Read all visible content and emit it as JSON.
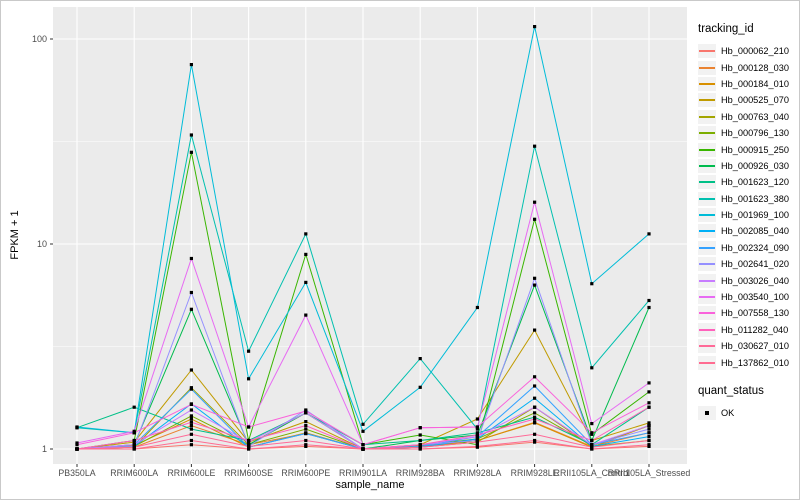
{
  "chart_data": {
    "type": "line",
    "title": "",
    "xlabel": "sample_name",
    "ylabel": "FPKM + 1",
    "y_scale": "log10",
    "ylim": [
      0.85,
      143
    ],
    "y_ticks": [
      1,
      10,
      100
    ],
    "y_minor_ticks": [
      3.162,
      31.62
    ],
    "grid": true,
    "legend_position": "right",
    "point_shape": "filled-square",
    "point_color": "#000000",
    "categories": [
      "PB350LA",
      "RRIM600LA",
      "RRIM600LE",
      "RRIM600SE",
      "RRIM600PE",
      "RRIM901LA",
      "RRIM928BA",
      "RRIM928LA",
      "RRIM928LE",
      "RRII105LA_Control",
      "RRII105LA_Stressed"
    ],
    "series": [
      {
        "name": "Hb_000062_210",
        "color": "#F8766D",
        "values": [
          1,
          1,
          1.05,
          1,
          1.03,
          1,
          1,
          1.02,
          1.08,
          1,
          1.03
        ]
      },
      {
        "name": "Hb_000128_030",
        "color": "#EA8331",
        "values": [
          1,
          1.02,
          1.3,
          1.05,
          1.19,
          1,
          1.03,
          1.1,
          1.35,
          1.03,
          1.2
        ]
      },
      {
        "name": "Hb_000184_010",
        "color": "#D89000",
        "values": [
          1,
          1.04,
          1.4,
          1.02,
          1.2,
          1,
          1.02,
          1.1,
          1.34,
          1.02,
          1.3
        ]
      },
      {
        "name": "Hb_000525_070",
        "color": "#C09B00",
        "values": [
          1,
          1.08,
          2.43,
          1.08,
          1.36,
          1,
          1.05,
          1.4,
          3.8,
          1.1,
          1.34
        ]
      },
      {
        "name": "Hb_000763_040",
        "color": "#A3A500",
        "values": [
          1,
          1.02,
          1.99,
          1.05,
          1.5,
          1,
          1.02,
          1.08,
          1.6,
          1.03,
          1.1
        ]
      },
      {
        "name": "Hb_000796_130",
        "color": "#7CAE00",
        "values": [
          1,
          1.03,
          1.45,
          1.05,
          1.25,
          1,
          1.04,
          1.12,
          1.5,
          1.04,
          1.3
        ]
      },
      {
        "name": "Hb_000915_250",
        "color": "#39B600",
        "values": [
          1,
          1.1,
          28,
          1.1,
          8.9,
          1.05,
          1.17,
          1.05,
          13.2,
          1.18,
          1.9
        ]
      },
      {
        "name": "Hb_000926_030",
        "color": "#00BB4E",
        "values": [
          1,
          1.05,
          4.8,
          1.05,
          1.5,
          1,
          1.1,
          1.17,
          6.3,
          1.1,
          4.9
        ]
      },
      {
        "name": "Hb_001623_120",
        "color": "#00C087",
        "values": [
          1.27,
          1.6,
          1.25,
          1.1,
          1.5,
          1.05,
          1.1,
          1.2,
          1.43,
          1.05,
          1.6
        ]
      },
      {
        "name": "Hb_001623_380",
        "color": "#00C0AF",
        "values": [
          1.27,
          1.2,
          34,
          3,
          11.2,
          1.32,
          2.76,
          1.25,
          30,
          2.49,
          5.3
        ]
      },
      {
        "name": "Hb_001969_100",
        "color": "#00BCD8",
        "values": [
          1.28,
          1.2,
          75,
          2.2,
          6.5,
          1.22,
          2,
          4.9,
          115,
          6.4,
          11.2
        ]
      },
      {
        "name": "Hb_002085_040",
        "color": "#00B0F6",
        "values": [
          1,
          1.03,
          1.66,
          1.02,
          1.19,
          1,
          1.02,
          1.12,
          1.77,
          1.03,
          1.15
        ]
      },
      {
        "name": "Hb_002324_090",
        "color": "#35A2FF",
        "values": [
          1,
          1.05,
          1.96,
          1.02,
          1.19,
          1,
          1.03,
          1.15,
          2.03,
          1.05,
          1.2
        ]
      },
      {
        "name": "Hb_002641_020",
        "color": "#9590FF",
        "values": [
          1,
          1.03,
          5.8,
          1.03,
          1.55,
          1,
          1.05,
          1.1,
          6.8,
          1.05,
          1.25
        ]
      },
      {
        "name": "Hb_003026_040",
        "color": "#C77CFF",
        "values": [
          1,
          1.05,
          1.55,
          1.08,
          1.5,
          1,
          1.05,
          1.15,
          1.6,
          1.05,
          1.3
        ]
      },
      {
        "name": "Hb_003540_100",
        "color": "#E76BF3",
        "values": [
          1.07,
          1.22,
          8.5,
          1.28,
          4.5,
          1.05,
          1.27,
          1.28,
          16,
          1.33,
          2.1
        ]
      },
      {
        "name": "Hb_007558_130",
        "color": "#FA62DB",
        "values": [
          1.05,
          1.2,
          1.65,
          1.28,
          1.53,
          1.05,
          1.27,
          1.28,
          2.25,
          1.2,
          1.68
        ]
      },
      {
        "name": "Hb_011282_040",
        "color": "#FF62BC",
        "values": [
          1,
          1.1,
          1.35,
          1.1,
          1.3,
          1,
          1.05,
          1.17,
          1.4,
          1.1,
          1.6
        ]
      },
      {
        "name": "Hb_030627_010",
        "color": "#FF6A98",
        "values": [
          1,
          1.02,
          1.18,
          1.03,
          1.1,
          1,
          1.02,
          1.08,
          1.18,
          1.02,
          1.1
        ]
      },
      {
        "name": "Hb_137862_010",
        "color": "#FF6C91",
        "values": [
          1,
          1,
          1.1,
          1,
          1.05,
          1,
          1,
          1.03,
          1.1,
          1,
          1.05
        ]
      }
    ]
  },
  "legend": {
    "tracking_title": "tracking_id",
    "quant_title": "quant_status",
    "quant_items": [
      {
        "label": "OK",
        "marker": "black-square"
      }
    ]
  },
  "colors": {
    "panel_bg": "#EBEBEB",
    "grid_major": "#FFFFFF",
    "grid_minor": "#F5F5F5",
    "tick_text": "#4D4D4D",
    "axis_tick": "#333333",
    "legend_key_bg": "#F2F2F2"
  }
}
